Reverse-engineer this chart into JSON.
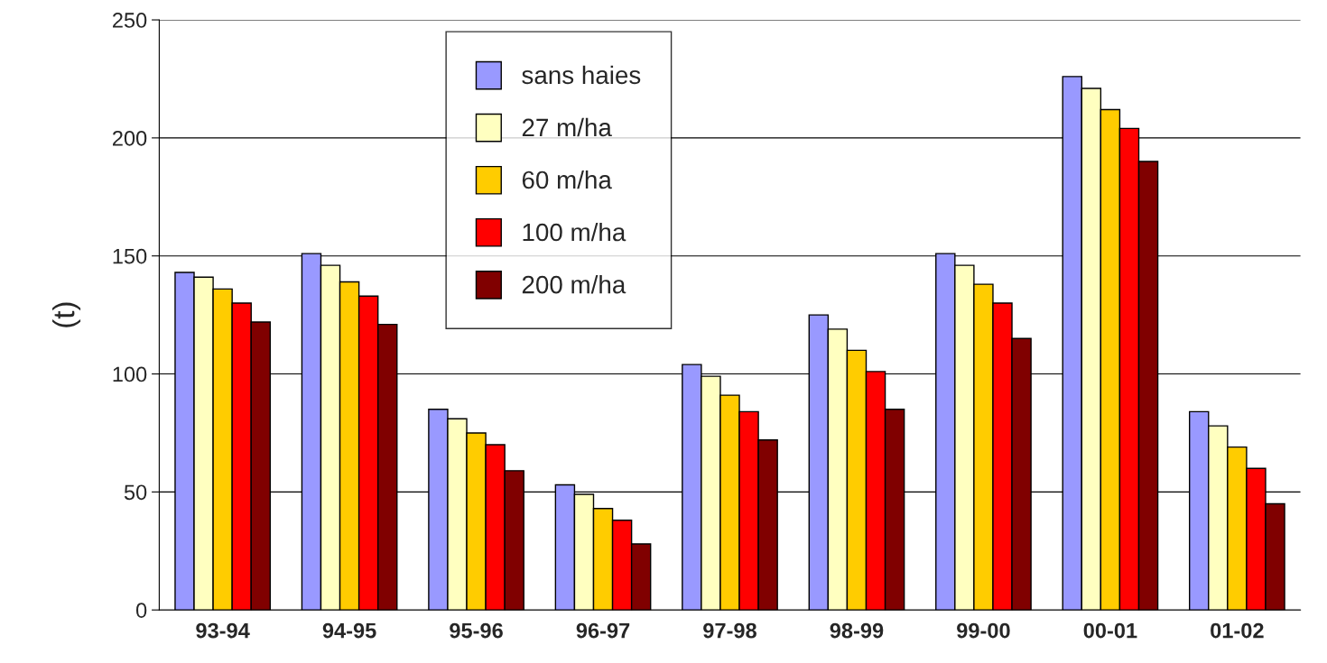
{
  "chart_data": {
    "type": "bar",
    "ylabel": "(t)",
    "categories": [
      "93-94",
      "94-95",
      "95-96",
      "96-97",
      "97-98",
      "98-99",
      "99-00",
      "00-01",
      "01-02"
    ],
    "series": [
      {
        "name": "sans haies",
        "color": "#9999ff",
        "values": [
          143,
          151,
          85,
          53,
          104,
          125,
          151,
          226,
          84
        ]
      },
      {
        "name": "27 m/ha",
        "color": "#ffffc0",
        "values": [
          141,
          146,
          81,
          49,
          99,
          119,
          146,
          221,
          78
        ]
      },
      {
        "name": "60 m/ha",
        "color": "#ffcc00",
        "values": [
          136,
          139,
          75,
          43,
          91,
          110,
          138,
          212,
          69
        ]
      },
      {
        "name": "100 m/ha",
        "color": "#ff0000",
        "values": [
          130,
          133,
          70,
          38,
          84,
          101,
          130,
          204,
          60
        ]
      },
      {
        "name": "200 m/ha",
        "color": "#800000",
        "values": [
          122,
          121,
          59,
          28,
          72,
          85,
          115,
          190,
          45
        ]
      }
    ],
    "ylim": [
      0,
      250
    ],
    "yticks": [
      0,
      50,
      100,
      150,
      200,
      250
    ],
    "grid": "y",
    "legend": "top"
  }
}
